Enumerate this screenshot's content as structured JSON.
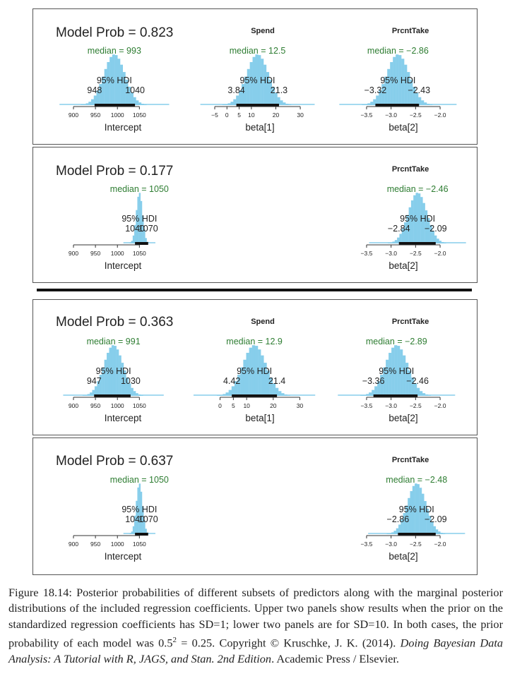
{
  "panels": [
    {
      "model_prob_label": "Model Prob = 0.823",
      "charts": [
        {
          "title": "",
          "xlabel": "Intercept",
          "median_label": "median = 993",
          "hdi_label": "95% HDI",
          "hdi_low_label": "948",
          "hdi_high_label": "1040",
          "ticks": [
            900,
            950,
            1000,
            1050
          ],
          "tick_labels": [
            "900",
            "950",
            "1000",
            "1050"
          ],
          "xlim": [
            900,
            1080
          ],
          "median": 993,
          "sd": 24,
          "hdi": [
            948,
            1040
          ],
          "col": 0
        },
        {
          "title": "Spend",
          "xlabel": "beta[1]",
          "median_label": "median = 12.5",
          "hdi_label": "95% HDI",
          "hdi_low_label": "3.84",
          "hdi_high_label": "21.3",
          "ticks": [
            -5,
            0,
            5,
            10,
            20,
            30
          ],
          "tick_labels": [
            "−5",
            "0",
            "5",
            "10",
            "20",
            "30"
          ],
          "xlim": [
            -5,
            32
          ],
          "median": 12.5,
          "sd": 4.5,
          "hdi": [
            3.84,
            21.3
          ],
          "col": 1
        },
        {
          "title": "PrcntTake",
          "xlabel": "beta[2]",
          "median_label": "median = −2.86",
          "hdi_label": "95% HDI",
          "hdi_low_label": "−3.32",
          "hdi_high_label": "−2.43",
          "ticks": [
            -3.5,
            -3.0,
            -2.5,
            -2.0
          ],
          "tick_labels": [
            "−3.5",
            "−3.0",
            "−2.5",
            "−2.0"
          ],
          "xlim": [
            -3.6,
            -1.9
          ],
          "median": -2.86,
          "sd": 0.23,
          "hdi": [
            -3.32,
            -2.43
          ],
          "col": 2
        }
      ]
    },
    {
      "model_prob_label": "Model Prob = 0.177",
      "charts": [
        {
          "title": "",
          "xlabel": "Intercept",
          "median_label": "median = 1050",
          "hdi_label": "95% HDI",
          "hdi_low_label": "1040",
          "hdi_high_label": "1070",
          "ticks": [
            900,
            950,
            1000,
            1050
          ],
          "tick_labels": [
            "900",
            "950",
            "1000",
            "1050"
          ],
          "xlim": [
            900,
            1080
          ],
          "median": 1050,
          "sd": 7,
          "hdi": [
            1040,
            1070
          ],
          "col": 0
        },
        {
          "title": "PrcntTake",
          "xlabel": "beta[2]",
          "median_label": "median = −2.46",
          "hdi_label": "95% HDI",
          "hdi_low_label": "−2.84",
          "hdi_high_label": "−2.09",
          "ticks": [
            -3.5,
            -3.0,
            -2.5,
            -2.0
          ],
          "tick_labels": [
            "−3.5",
            "−3.0",
            "−2.5",
            "−2.0"
          ],
          "xlim": [
            -3.6,
            -1.9
          ],
          "median": -2.46,
          "sd": 0.19,
          "hdi": [
            -2.84,
            -2.09
          ],
          "col": 2
        }
      ]
    },
    {
      "model_prob_label": "Model Prob = 0.363",
      "charts": [
        {
          "title": "",
          "xlabel": "Intercept",
          "median_label": "median = 991",
          "hdi_label": "95% HDI",
          "hdi_low_label": "947",
          "hdi_high_label": "1030",
          "ticks": [
            900,
            950,
            1000,
            1050
          ],
          "tick_labels": [
            "900",
            "950",
            "1000",
            "1050"
          ],
          "xlim": [
            900,
            1080
          ],
          "median": 991,
          "sd": 22,
          "hdi": [
            947,
            1030
          ],
          "col": 0
        },
        {
          "title": "Spend",
          "xlabel": "beta[1]",
          "median_label": "median = 12.9",
          "hdi_label": "95% HDI",
          "hdi_low_label": "4.42",
          "hdi_high_label": "21.4",
          "ticks": [
            0,
            5,
            10,
            20,
            30
          ],
          "tick_labels": [
            "0",
            "5",
            "10",
            "20",
            "30"
          ],
          "xlim": [
            -2,
            32
          ],
          "median": 12.9,
          "sd": 4.4,
          "hdi": [
            4.42,
            21.4
          ],
          "col": 1
        },
        {
          "title": "PrcntTake",
          "xlabel": "beta[2]",
          "median_label": "median = −2.89",
          "hdi_label": "95% HDI",
          "hdi_low_label": "−3.36",
          "hdi_high_label": "−2.46",
          "ticks": [
            -3.5,
            -3.0,
            -2.5,
            -2.0
          ],
          "tick_labels": [
            "−3.5",
            "−3.0",
            "−2.5",
            "−2.0"
          ],
          "xlim": [
            -3.6,
            -1.9
          ],
          "median": -2.89,
          "sd": 0.23,
          "hdi": [
            -3.36,
            -2.46
          ],
          "col": 2
        }
      ]
    },
    {
      "model_prob_label": "Model Prob = 0.637",
      "charts": [
        {
          "title": "",
          "xlabel": "Intercept",
          "median_label": "median = 1050",
          "hdi_label": "95% HDI",
          "hdi_low_label": "1040",
          "hdi_high_label": "1070",
          "ticks": [
            900,
            950,
            1000,
            1050
          ],
          "tick_labels": [
            "900",
            "950",
            "1000",
            "1050"
          ],
          "xlim": [
            900,
            1080
          ],
          "median": 1050,
          "sd": 7,
          "hdi": [
            1040,
            1070
          ],
          "col": 0
        },
        {
          "title": "PrcntTake",
          "xlabel": "beta[2]",
          "median_label": "median = −2.48",
          "hdi_label": "95% HDI",
          "hdi_low_label": "−2.86",
          "hdi_high_label": "−2.09",
          "ticks": [
            -3.5,
            -3.0,
            -2.5,
            -2.0
          ],
          "tick_labels": [
            "−3.5",
            "−3.0",
            "−2.5",
            "−2.0"
          ],
          "xlim": [
            -3.6,
            -1.9
          ],
          "median": -2.48,
          "sd": 0.19,
          "hdi": [
            -2.86,
            -2.09
          ],
          "col": 2
        }
      ]
    }
  ],
  "chart_data": [
    {
      "type": "bar",
      "title": "",
      "xlabel": "Intercept",
      "median": 993,
      "hdi_95": [
        948,
        1040
      ],
      "model_prob": 0.823
    },
    {
      "type": "bar",
      "title": "Spend",
      "xlabel": "beta[1]",
      "median": 12.5,
      "hdi_95": [
        3.84,
        21.3
      ],
      "model_prob": 0.823
    },
    {
      "type": "bar",
      "title": "PrcntTake",
      "xlabel": "beta[2]",
      "median": -2.86,
      "hdi_95": [
        -3.32,
        -2.43
      ],
      "model_prob": 0.823
    },
    {
      "type": "bar",
      "title": "",
      "xlabel": "Intercept",
      "median": 1050,
      "hdi_95": [
        1040,
        1070
      ],
      "model_prob": 0.177
    },
    {
      "type": "bar",
      "title": "PrcntTake",
      "xlabel": "beta[2]",
      "median": -2.46,
      "hdi_95": [
        -2.84,
        -2.09
      ],
      "model_prob": 0.177
    },
    {
      "type": "bar",
      "title": "",
      "xlabel": "Intercept",
      "median": 991,
      "hdi_95": [
        947,
        1030
      ],
      "model_prob": 0.363
    },
    {
      "type": "bar",
      "title": "Spend",
      "xlabel": "beta[1]",
      "median": 12.9,
      "hdi_95": [
        4.42,
        21.4
      ],
      "model_prob": 0.363
    },
    {
      "type": "bar",
      "title": "PrcntTake",
      "xlabel": "beta[2]",
      "median": -2.89,
      "hdi_95": [
        -3.36,
        -2.46
      ],
      "model_prob": 0.363
    },
    {
      "type": "bar",
      "title": "",
      "xlabel": "Intercept",
      "median": 1050,
      "hdi_95": [
        1040,
        1070
      ],
      "model_prob": 0.637
    },
    {
      "type": "bar",
      "title": "PrcntTake",
      "xlabel": "beta[2]",
      "median": -2.48,
      "hdi_95": [
        -2.86,
        -2.09
      ],
      "model_prob": 0.637
    }
  ],
  "colors": {
    "histogram": "#87ceeb",
    "median_text": "#2e7d32",
    "hdi_bar": "#111111",
    "axis": "#333333"
  },
  "caption": {
    "label": "Figure 18.14:",
    "text1": " Posterior probabilities of different subsets of predictors along with the marginal posterior distributions of the included regression coefficients. Upper two panels show results when the prior on the standardized regression coefficients has SD=1; lower two panels are for SD=10. In both cases, the prior probability of each model was 0.5",
    "sup": "2",
    "text2": " = 0.25. Copyright © Kruschke, J. K. (2014). ",
    "book": "Doing Bayesian Data Analysis: A Tutorial with R, JAGS, and Stan. 2nd Edition",
    "publisher": ". Academic Press / Elsevier."
  }
}
